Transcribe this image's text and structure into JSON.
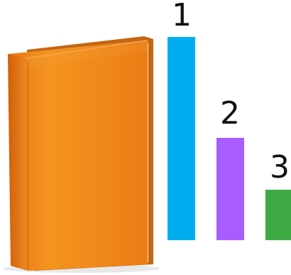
{
  "scene": {
    "book": {
      "icon": "book-icon",
      "cover_color": "#f08c1f",
      "page_color": "#f8f1d8",
      "spine_color": "#d76b0d"
    },
    "bars": [
      {
        "label": "1",
        "value": 3,
        "color": "#00aeef"
      },
      {
        "label": "2",
        "value": 1.5,
        "color": "#a95cff"
      },
      {
        "label": "3",
        "value": 0.75,
        "color": "#3daa44"
      }
    ]
  }
}
